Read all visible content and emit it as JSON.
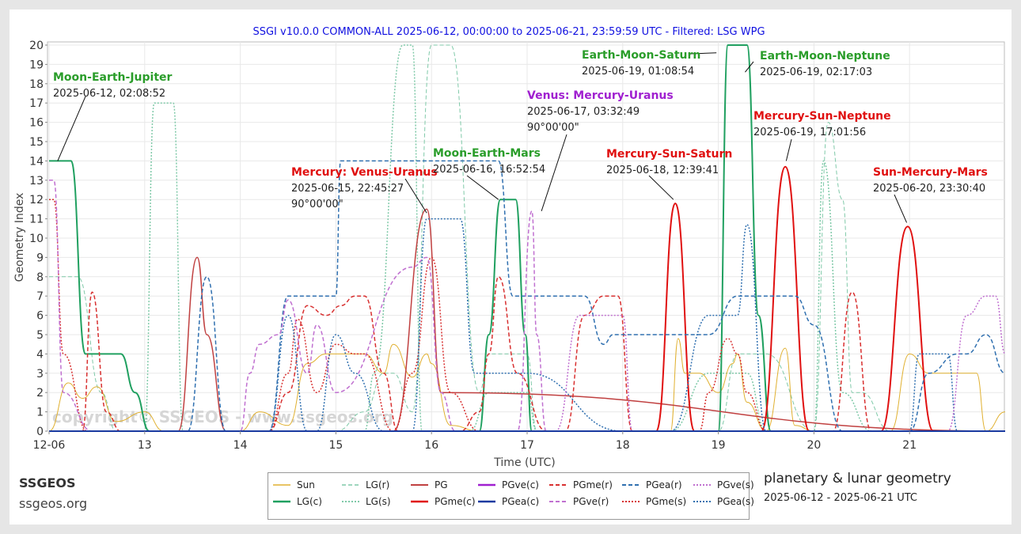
{
  "footer": {
    "brand": "SSGEOS",
    "url": "ssgeos.org",
    "caption": "planetary & lunar geometry",
    "range": "2025-06-12 - 2025-06-21 UTC"
  },
  "watermark": "copyright© SSGEOS - www.ssgeos.org",
  "legend_items": [
    {
      "label": "Sun",
      "color": "#e0b030",
      "style": "solid",
      "width": 1
    },
    {
      "label": "LG(r)",
      "color": "#7fc9a8",
      "style": "dashed",
      "width": 1
    },
    {
      "label": "PG",
      "color": "#c04040",
      "style": "solid",
      "width": 1.5
    },
    {
      "label": "PGve(c)",
      "color": "#a020d0",
      "style": "solid",
      "width": 2
    },
    {
      "label": "PGme(r)",
      "color": "#d83030",
      "style": "dashed",
      "width": 1.5
    },
    {
      "label": "PGea(r)",
      "color": "#3070b0",
      "style": "dashed",
      "width": 1.5
    },
    {
      "label": "PGve(s)",
      "color": "#c070d0",
      "style": "dotted",
      "width": 1.5
    },
    {
      "label": "LG(c)",
      "color": "#20a060",
      "style": "solid",
      "width": 2
    },
    {
      "label": "LG(s)",
      "color": "#7fc9a8",
      "style": "dotted",
      "width": 1.5
    },
    {
      "label": "PGme(c)",
      "color": "#e01010",
      "style": "solid",
      "width": 2
    },
    {
      "label": "PGea(c)",
      "color": "#1a3aa0",
      "style": "solid",
      "width": 2
    },
    {
      "label": "PGve(r)",
      "color": "#c070d0",
      "style": "dashed",
      "width": 1.5
    },
    {
      "label": "PGme(s)",
      "color": "#d83030",
      "style": "dotted",
      "width": 1.5
    },
    {
      "label": "PGea(s)",
      "color": "#3070b0",
      "style": "dotted",
      "width": 1.5
    }
  ],
  "chart_data": {
    "type": "line",
    "title": "SSGI v10.0.0 COMMON-ALL 2025-06-12, 00:00:00 to 2025-06-21, 23:59:59 UTC - Filtered: LSG WPG",
    "xlabel": "Time (UTC)",
    "ylabel": "Geometry Index",
    "x_unit": "days since 2025-06-12 00:00 UTC",
    "xlim": [
      0,
      10
    ],
    "ylim": [
      0,
      20
    ],
    "x_ticks": [
      {
        "value": 0,
        "label": "12-06"
      },
      {
        "value": 1,
        "label": "13"
      },
      {
        "value": 2,
        "label": "14"
      },
      {
        "value": 3,
        "label": "15"
      },
      {
        "value": 4,
        "label": "16"
      },
      {
        "value": 5,
        "label": "17"
      },
      {
        "value": 6,
        "label": "18"
      },
      {
        "value": 7,
        "label": "19"
      },
      {
        "value": 8,
        "label": "20"
      },
      {
        "value": 9,
        "label": "21"
      }
    ],
    "y_ticks": [
      0,
      1,
      2,
      3,
      4,
      5,
      6,
      7,
      8,
      9,
      10,
      11,
      12,
      13,
      14,
      15,
      16,
      17,
      18,
      19,
      20
    ],
    "grid": true,
    "series": [
      {
        "name": "LG(r)",
        "x": [
          0,
          0.3,
          0.55,
          0.7,
          1.0,
          1.3,
          1.5,
          1.6,
          2.0,
          3.0,
          3.3,
          3.5,
          3.6,
          3.8,
          4.0,
          4.2,
          4.5,
          4.6,
          5.0,
          5.1,
          5.8,
          6.0,
          7.0,
          7.2,
          7.5,
          8.0,
          8.15,
          8.3,
          8.4,
          8.5,
          8.8,
          9.0,
          10.0
        ],
        "y": [
          8,
          8,
          2,
          0,
          0,
          0,
          0,
          0,
          0,
          0,
          1,
          3,
          3,
          1,
          20,
          20,
          2,
          4,
          4,
          0,
          0,
          0,
          0,
          4,
          4,
          0,
          16,
          12,
          2,
          2,
          0,
          0,
          0
        ]
      },
      {
        "name": "LG(s)",
        "x": [
          0,
          0.6,
          1.0,
          1.1,
          1.3,
          1.4,
          1.6,
          1.9,
          2.0,
          3.0,
          3.2,
          3.3,
          3.4,
          3.7,
          3.8,
          3.9,
          4.0,
          4.2,
          4.4,
          4.6,
          5.0,
          5.1,
          6.0,
          6.5,
          6.9,
          7.3,
          7.5,
          8.0,
          8.1,
          8.3,
          8.6,
          9.0,
          10.0
        ],
        "y": [
          0,
          0,
          0,
          17,
          17,
          0,
          0,
          0,
          0,
          0,
          0,
          0,
          3,
          20,
          20,
          0,
          0,
          0,
          0,
          2,
          2,
          0,
          0,
          0,
          3,
          3,
          0,
          0,
          14,
          2,
          0,
          0,
          0
        ]
      },
      {
        "name": "Sun",
        "x": [
          0,
          0.2,
          0.35,
          0.5,
          0.7,
          1.0,
          1.2,
          2.0,
          2.2,
          2.5,
          2.7,
          2.9,
          3.0,
          3.3,
          3.5,
          3.6,
          3.8,
          3.95,
          4.0,
          4.2,
          4.5,
          4.7,
          5.0,
          6.0,
          6.5,
          6.58,
          6.65,
          6.8,
          7.0,
          7.15,
          7.2,
          7.3,
          7.5,
          7.7,
          7.8,
          8.0,
          8.5,
          8.8,
          9.0,
          9.2,
          9.5,
          9.7,
          9.8,
          10.0
        ],
        "y": [
          0,
          2.5,
          1.7,
          2.3,
          0.5,
          1.0,
          0,
          0,
          1,
          0.3,
          3.5,
          4,
          4,
          4,
          3,
          4.5,
          2.8,
          4,
          3.5,
          0.3,
          0,
          0,
          0,
          0,
          0,
          4.8,
          3.0,
          3,
          2,
          3.5,
          4,
          1.5,
          0,
          4.3,
          0.3,
          0,
          0,
          0,
          4,
          3,
          3,
          3,
          0,
          1
        ]
      },
      {
        "name": "LG(c)",
        "x": [
          0,
          0.23,
          0.38,
          0.55,
          0.75,
          0.9,
          1.05,
          1.2,
          4.5,
          4.6,
          4.72,
          4.88,
          4.98,
          5.05,
          7.0,
          7.1,
          7.3,
          7.42,
          7.55,
          10.0
        ],
        "y": [
          14,
          14,
          4,
          4,
          4,
          2,
          0,
          0,
          0,
          5,
          12,
          12,
          5,
          0,
          0,
          20,
          20,
          6,
          0,
          0
        ]
      },
      {
        "name": "PG",
        "x": [
          0,
          1.35,
          1.55,
          1.65,
          1.85,
          3.6,
          3.95,
          4.1,
          10.0
        ],
        "y": [
          0,
          0,
          9,
          5,
          0,
          0,
          11.5,
          2,
          0
        ]
      },
      {
        "name": "PGme(c)",
        "x": [
          0,
          6.35,
          6.55,
          6.75,
          7.45,
          7.7,
          7.95,
          8.7,
          8.98,
          9.25,
          10.0
        ],
        "y": [
          0,
          0,
          11.8,
          0,
          0,
          13.7,
          0,
          0,
          10.6,
          0,
          0
        ]
      },
      {
        "name": "PGme(r)",
        "x": [
          0,
          0.35,
          0.45,
          0.6,
          0.75,
          2.3,
          2.5,
          2.7,
          2.9,
          3.05,
          3.2,
          3.3,
          3.5,
          3.65,
          4.3,
          4.5,
          4.6,
          4.7,
          4.9,
          5.2,
          5.4,
          5.6,
          5.8,
          5.95,
          6.1,
          6.2,
          8.2,
          8.4,
          8.6,
          10.0
        ],
        "y": [
          0,
          0,
          7.2,
          1,
          0,
          0,
          2,
          6.5,
          6,
          6.5,
          7,
          7,
          3,
          0,
          0,
          1,
          4,
          8,
          3,
          0,
          0,
          6,
          7,
          7,
          0,
          0,
          0,
          7.2,
          0,
          0
        ]
      },
      {
        "name": "PGme(s)",
        "x": [
          0,
          0.05,
          0.15,
          0.4,
          0.5,
          2.3,
          2.5,
          2.6,
          2.8,
          3.0,
          3.2,
          3.3,
          3.6,
          3.8,
          4.0,
          4.2,
          4.5,
          6.8,
          6.9,
          7.1,
          7.2,
          7.3,
          7.5,
          10.0
        ],
        "y": [
          12,
          12,
          4,
          0,
          0,
          0,
          3,
          5.8,
          2,
          4.5,
          4,
          4,
          0,
          3,
          9,
          2,
          0,
          0,
          2,
          4.8,
          4,
          2,
          0,
          0
        ]
      },
      {
        "name": "PGea(r)",
        "x": [
          0,
          1.45,
          1.65,
          1.85,
          2.3,
          2.5,
          2.8,
          3.0,
          3.05,
          3.2,
          3.5,
          4.7,
          4.85,
          5.0,
          5.6,
          5.8,
          5.9,
          6.0,
          6.5,
          6.9,
          7.2,
          7.3,
          7.8,
          8.0,
          8.3,
          8.4,
          9.0,
          9.2,
          9.5,
          9.6,
          9.8,
          10.0
        ],
        "y": [
          0,
          0,
          8,
          0,
          0,
          7,
          7,
          7,
          14,
          14,
          14,
          14,
          7,
          7,
          7,
          4.5,
          5,
          5,
          5,
          5,
          7,
          7,
          7,
          5.5,
          0,
          0,
          0,
          3,
          4,
          4,
          5,
          3
        ]
      },
      {
        "name": "PGea(s)",
        "x": [
          0,
          2.3,
          2.5,
          2.7,
          2.8,
          3.0,
          3.2,
          3.5,
          3.8,
          3.95,
          4.0,
          4.3,
          4.45,
          4.6,
          4.8,
          5.0,
          6.0,
          6.2,
          6.5,
          6.9,
          7.0,
          7.2,
          7.3,
          7.5,
          8.0,
          8.4,
          9.0,
          9.1,
          9.2,
          9.4,
          9.5,
          9.6,
          10.0
        ],
        "y": [
          0,
          0,
          6,
          0,
          0,
          5,
          3,
          0,
          0,
          11,
          11,
          11,
          3,
          3,
          3,
          3,
          0,
          0,
          0,
          6,
          6,
          6,
          10.7,
          0,
          0,
          0,
          0,
          4,
          4,
          4,
          0,
          0,
          0
        ]
      },
      {
        "name": "PGve(r)",
        "x": [
          0,
          0.05,
          0.15,
          0.45,
          2.0,
          2.1,
          2.2,
          2.4,
          2.5,
          2.7,
          2.8,
          3.0,
          3.8,
          3.95,
          4.1,
          4.25,
          4.4,
          4.6,
          4.9,
          5.05,
          5.1,
          5.2,
          5.3,
          5.5,
          6.0,
          6.5,
          9.5,
          10.0
        ],
        "y": [
          13,
          13,
          2,
          0,
          0,
          3,
          4.5,
          5,
          6.8,
          3,
          5.5,
          2,
          8.5,
          9,
          2,
          0,
          0,
          0,
          0,
          11.4,
          5,
          0,
          0,
          0,
          0,
          0,
          0,
          0
        ]
      },
      {
        "name": "PGve(s)",
        "x": [
          0,
          0.2,
          0.4,
          0.55,
          0.7,
          4.8,
          5.0,
          5.15,
          5.3,
          5.55,
          5.7,
          6.0,
          6.1,
          6.25,
          9.4,
          9.6,
          9.8,
          9.9,
          10.0
        ],
        "y": [
          0,
          0,
          0,
          0,
          0,
          0,
          0,
          0,
          0,
          6,
          6,
          6,
          0,
          0,
          0,
          6,
          7,
          7,
          4
        ]
      },
      {
        "name": "PGve(c)",
        "x": [
          0,
          10.0
        ],
        "y": [
          0,
          0
        ]
      },
      {
        "name": "PGea(c)",
        "x": [
          0,
          10.0
        ],
        "y": [
          0,
          0
        ]
      }
    ],
    "annotations": [
      {
        "title": "Moon-Earth-Jupiter",
        "lines": [
          "2025-06-12, 02:08:52"
        ],
        "color": "#2a9d2a",
        "anchor_x": 0.09,
        "anchor_y": 14
      },
      {
        "title": "Mercury: Venus-Uranus",
        "lines": [
          "2025-06-15, 22:45:27",
          "90°00'00\""
        ],
        "color": "#e01010",
        "anchor_x": 3.95,
        "anchor_y": 11.3
      },
      {
        "title": "Moon-Earth-Mars",
        "lines": [
          "2025-06-16, 16:52:54"
        ],
        "color": "#2a9d2a",
        "anchor_x": 4.7,
        "anchor_y": 12
      },
      {
        "title": "Venus: Mercury-Uranus",
        "lines": [
          "2025-06-17, 03:32:49",
          "90°00'00\""
        ],
        "color": "#a020d0",
        "anchor_x": 5.15,
        "anchor_y": 11.4
      },
      {
        "title": "Mercury-Sun-Saturn",
        "lines": [
          "2025-06-18, 12:39:41"
        ],
        "color": "#e01010",
        "anchor_x": 6.53,
        "anchor_y": 12
      },
      {
        "title": "Earth-Moon-Saturn",
        "lines": [
          "2025-06-19, 01:08:54"
        ],
        "color": "#2a9d2a",
        "anchor_x": 6.98,
        "anchor_y": 19.6
      },
      {
        "title": "Earth-Moon-Neptune",
        "lines": [
          "2025-06-19, 02:17:03"
        ],
        "color": "#2a9d2a",
        "anchor_x": 7.28,
        "anchor_y": 18.6
      },
      {
        "title": "Mercury-Sun-Neptune",
        "lines": [
          "2025-06-19, 17:01:56"
        ],
        "color": "#e01010",
        "anchor_x": 7.71,
        "anchor_y": 14
      },
      {
        "title": "Sun-Mercury-Mars",
        "lines": [
          "2025-06-20, 23:30:40"
        ],
        "color": "#e01010",
        "anchor_x": 8.97,
        "anchor_y": 10.8
      }
    ]
  }
}
